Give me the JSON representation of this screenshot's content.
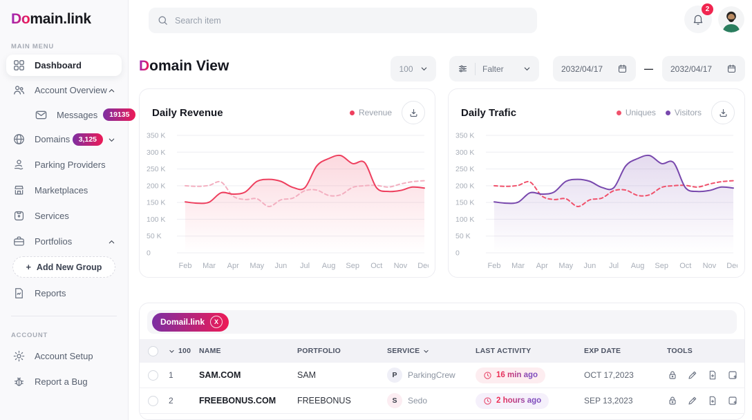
{
  "colors": {
    "accent_gradient_start": "#7B2FA3",
    "accent_gradient_end": "#EE1A55",
    "notification_badge": "#F0254F",
    "revenue_line": "#EE3F5E",
    "revenue_dashed": "#F3AFC0",
    "visitors_line": "#7848AD",
    "uniques_line": "#F0516B"
  },
  "sidebar": {
    "logo_accent": "Do",
    "logo_rest": "main.link",
    "section_main": "MAIN MENU",
    "section_account": "ACCOUNT",
    "items": {
      "dashboard": "Dashboard",
      "account_overview": "Account Overview",
      "messages": "Messages",
      "messages_badge": "19135",
      "domains": "Domains",
      "domains_badge": "3,125",
      "parking_providers": "Parking Providers",
      "marketplaces": "Marketplaces",
      "services": "Services",
      "portfolios": "Portfolios",
      "add_new_group": "Add New Group",
      "add_new_group_plus": "+",
      "reports": "Reports",
      "account_setup": "Account Setup",
      "report_a_bug": "Report a Bug"
    }
  },
  "topbar": {
    "search_placeholder": "Search item",
    "notification_count": "2"
  },
  "header": {
    "title_accent": "D",
    "title_rest": "omain View",
    "page_size": "100",
    "filter_label": "Falter",
    "date_from": "2032/04/17",
    "date_separator": "—",
    "date_to": "2032/04/17"
  },
  "chart_data": [
    {
      "type": "area",
      "title": "Daily Revenue",
      "legend": [
        {
          "label": "Revenue",
          "color": "#EE3F5E"
        }
      ],
      "categories": [
        "Feb",
        "Mar",
        "Apr",
        "May",
        "Jun",
        "Jul",
        "Aug",
        "Sep",
        "Oct",
        "Nov",
        "Dec"
      ],
      "ylabels": [
        "350 K",
        "300 K",
        "250 K",
        "200 K",
        "150 K",
        "100 K",
        "50 K",
        "0"
      ],
      "ylim": [
        0,
        350
      ],
      "unit": "K",
      "grid": true,
      "legend_position": "top-right",
      "series": [
        {
          "name": "Revenue",
          "line": "solid",
          "color": "#EE3F5E",
          "area": true,
          "values": [
            152,
            148,
            151,
            179,
            175,
            181,
            213,
            219,
            213,
            195,
            194,
            259,
            281,
            290,
            266,
            269,
            194,
            183,
            186,
            196,
            193
          ]
        },
        {
          "name": "",
          "line": "dashed",
          "color": "#F3AFC0",
          "area": false,
          "values": [
            200,
            198,
            201,
            211,
            169,
            159,
            161,
            138,
            158,
            163,
            185,
            187,
            171,
            173,
            195,
            200,
            201,
            196,
            205,
            212,
            215
          ]
        }
      ],
      "area_fill_from": "rgba(238,63,94,0.20)",
      "area_fill_to": "rgba(238,63,94,0)"
    },
    {
      "type": "area",
      "title": "Daily Trafic",
      "legend": [
        {
          "label": "Uniques",
          "color": "#F0516B"
        },
        {
          "label": "Visitors",
          "color": "#7848AD"
        }
      ],
      "categories": [
        "Feb",
        "Mar",
        "Apr",
        "May",
        "Jun",
        "Jul",
        "Aug",
        "Sep",
        "Oct",
        "Nov",
        "Dec"
      ],
      "ylabels": [
        "350 K",
        "300 K",
        "250 K",
        "200 K",
        "150 K",
        "100 K",
        "50 K",
        "0"
      ],
      "ylim": [
        0,
        350
      ],
      "unit": "K",
      "grid": true,
      "legend_position": "top-right",
      "series": [
        {
          "name": "Visitors",
          "line": "solid",
          "color": "#7848AD",
          "area": true,
          "values": [
            152,
            148,
            151,
            179,
            175,
            181,
            213,
            219,
            213,
            195,
            194,
            259,
            281,
            290,
            266,
            269,
            194,
            183,
            186,
            196,
            193
          ]
        },
        {
          "name": "Uniques",
          "line": "dashed",
          "color": "#F0516B",
          "area": false,
          "values": [
            200,
            198,
            201,
            211,
            169,
            159,
            161,
            138,
            158,
            163,
            185,
            187,
            171,
            173,
            195,
            200,
            201,
            196,
            205,
            212,
            215
          ]
        }
      ],
      "area_fill_from": "rgba(120,72,173,0.20)",
      "area_fill_to": "rgba(120,72,173,0)"
    }
  ],
  "table": {
    "filter_tag": "Domail.link",
    "filter_tag_close": "X",
    "headers": {
      "count": "100",
      "name": "NAME",
      "portfolio": "PORTFOLIO",
      "service": "SERVICE",
      "last_activity": "LAST ACTIVITY",
      "exp_date": "EXP DATE",
      "tools": "TOOLS"
    },
    "rows": [
      {
        "num": "1",
        "name": "SAM.COM",
        "portfolio": "SAM",
        "service_initial": "P",
        "service": "ParkingCrew",
        "last_activity": "16 min ago",
        "exp_date": "OCT 17,2023"
      },
      {
        "num": "2",
        "name": "FREEBONUS.COM",
        "portfolio": "FREEBONUS",
        "service_initial": "S",
        "service": "Sedo",
        "last_activity": "2 hours ago",
        "exp_date": "SEP 13,2023"
      }
    ]
  }
}
